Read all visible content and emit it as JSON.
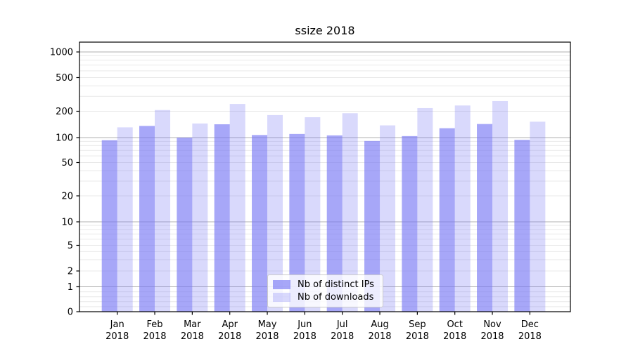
{
  "title": "ssize 2018",
  "legend": {
    "items": [
      {
        "label": "Nb of distinct IPs"
      },
      {
        "label": "Nb of downloads"
      }
    ]
  },
  "colors": {
    "series_dark": "rgba(120,120,245,0.65)",
    "series_light": "rgba(120,120,245,0.28)",
    "grid_major": "#b0b0b0",
    "grid_minor": "#e9e9e9",
    "axis": "#000000",
    "text": "#000000"
  },
  "chart_data": {
    "type": "bar",
    "title": "ssize 2018",
    "categories": [
      "Jan",
      "Feb",
      "Mar",
      "Apr",
      "May",
      "Jun",
      "Jul",
      "Aug",
      "Sep",
      "Oct",
      "Nov",
      "Dec"
    ],
    "category_year": "2018",
    "series": [
      {
        "name": "Nb of distinct IPs",
        "values": [
          93,
          136,
          100,
          142,
          107,
          110,
          106,
          91,
          104,
          128,
          143,
          94
        ]
      },
      {
        "name": "Nb of downloads",
        "values": [
          131,
          207,
          145,
          244,
          181,
          171,
          190,
          138,
          218,
          234,
          264,
          152
        ]
      }
    ],
    "xlabel": "",
    "ylabel": "",
    "yscale": "symlog",
    "yticks": [
      0,
      1,
      2,
      5,
      10,
      20,
      50,
      100,
      200,
      500,
      1000
    ],
    "ylim": [
      0,
      1200
    ],
    "grid": true,
    "legend_position": "lower-center-inside"
  }
}
